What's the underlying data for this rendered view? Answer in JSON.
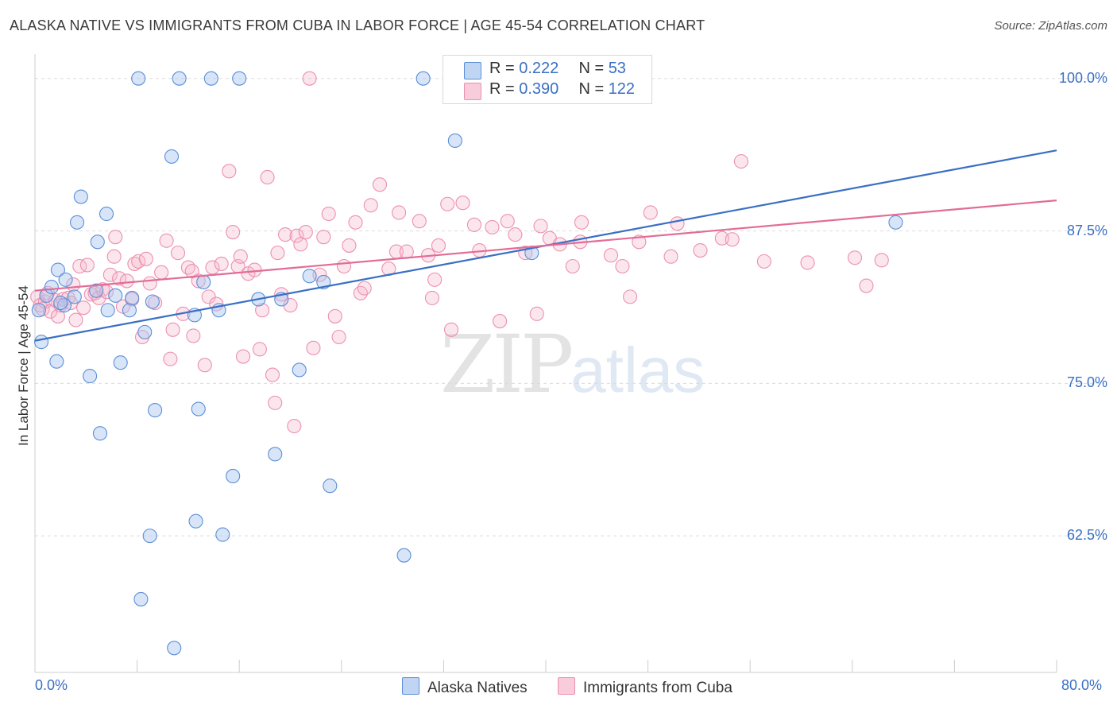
{
  "title": "ALASKA NATIVE VS IMMIGRANTS FROM CUBA IN LABOR FORCE | AGE 45-54 CORRELATION CHART",
  "source": "Source: ZipAtlas.com",
  "watermark": {
    "zip": "ZIP",
    "atlas": "atlas"
  },
  "colors": {
    "blue": "#3a6fc4",
    "blue_fill": "#a9c6ef",
    "blue_stroke": "#5b8fd6",
    "pink": "#e26c98",
    "pink_fill": "#f5b8cb",
    "pink_stroke": "#ec90ae",
    "grid": "#dcdcdc"
  },
  "legend": {
    "rows": [
      {
        "r_label": "R = ",
        "r_value": "0.222",
        "n_label": "N = ",
        "n_value": "53"
      },
      {
        "r_label": "R = ",
        "r_value": "0.390",
        "n_label": "N = ",
        "n_value": "122"
      }
    ]
  },
  "bottom_legend": {
    "series1": "Alaska Natives",
    "series2": "Immigrants from Cuba"
  },
  "chart_data": {
    "type": "scatter",
    "xlabel": "",
    "ylabel": "In Labor Force | Age 45-54",
    "xlim": [
      0,
      80
    ],
    "ylim": [
      51.3,
      102.0
    ],
    "x_tick_labels": {
      "min": "0.0%",
      "max": "80.0%"
    },
    "y_ticks": [
      62.5,
      75.0,
      87.5,
      100.0
    ],
    "y_tick_labels": [
      "62.5%",
      "75.0%",
      "87.5%",
      "100.0%"
    ],
    "grid": "horizontal dashed",
    "legend_position": "top-center",
    "series": [
      {
        "name": "Alaska Natives",
        "color": "#5b8fd6",
        "trend": {
          "x": [
            0,
            80
          ],
          "y": [
            78.5,
            94.1
          ]
        },
        "points": [
          [
            0.3,
            81.0
          ],
          [
            0.5,
            78.4
          ],
          [
            0.9,
            82.2
          ],
          [
            1.3,
            82.9
          ],
          [
            1.7,
            76.8
          ],
          [
            1.8,
            84.3
          ],
          [
            2.3,
            81.4
          ],
          [
            2.4,
            83.5
          ],
          [
            3.1,
            82.1
          ],
          [
            3.3,
            88.2
          ],
          [
            3.6,
            90.3
          ],
          [
            4.3,
            75.6
          ],
          [
            4.8,
            82.6
          ],
          [
            4.9,
            86.6
          ],
          [
            5.1,
            70.9
          ],
          [
            5.6,
            88.9
          ],
          [
            5.7,
            81.0
          ],
          [
            6.3,
            82.2
          ],
          [
            6.7,
            76.7
          ],
          [
            7.4,
            81.0
          ],
          [
            7.6,
            82.0
          ],
          [
            8.1,
            100.0
          ],
          [
            8.3,
            57.3
          ],
          [
            8.6,
            79.2
          ],
          [
            9.0,
            62.5
          ],
          [
            9.4,
            72.8
          ],
          [
            10.7,
            93.6
          ],
          [
            10.9,
            53.3
          ],
          [
            11.3,
            100.0
          ],
          [
            12.5,
            80.6
          ],
          [
            12.6,
            63.7
          ],
          [
            12.8,
            72.9
          ],
          [
            13.2,
            83.3
          ],
          [
            13.8,
            100.0
          ],
          [
            14.4,
            81.0
          ],
          [
            14.7,
            62.6
          ],
          [
            15.5,
            67.4
          ],
          [
            16.0,
            100.0
          ],
          [
            17.5,
            81.9
          ],
          [
            18.8,
            69.2
          ],
          [
            19.3,
            81.9
          ],
          [
            20.7,
            76.1
          ],
          [
            21.5,
            83.8
          ],
          [
            22.6,
            83.3
          ],
          [
            23.1,
            66.6
          ],
          [
            28.9,
            60.9
          ],
          [
            30.4,
            100.0
          ],
          [
            32.9,
            94.9
          ],
          [
            38.9,
            85.7
          ],
          [
            44.4,
            100.0
          ],
          [
            67.4,
            88.2
          ],
          [
            2.0,
            81.6
          ],
          [
            9.2,
            81.7
          ]
        ]
      },
      {
        "name": "Immigrants from Cuba",
        "color": "#ec90ae",
        "trend": {
          "x": [
            0,
            80
          ],
          "y": [
            82.6,
            90.0
          ]
        },
        "points": [
          [
            0.2,
            82.1
          ],
          [
            0.4,
            81.4
          ],
          [
            0.6,
            81.1
          ],
          [
            0.8,
            81.7
          ],
          [
            1.0,
            82.4
          ],
          [
            1.2,
            80.9
          ],
          [
            1.6,
            81.8
          ],
          [
            1.8,
            80.5
          ],
          [
            2.0,
            81.4
          ],
          [
            2.2,
            81.9
          ],
          [
            2.6,
            82.0
          ],
          [
            2.8,
            81.6
          ],
          [
            3.0,
            83.1
          ],
          [
            3.2,
            80.2
          ],
          [
            3.5,
            84.6
          ],
          [
            3.8,
            81.2
          ],
          [
            4.1,
            84.7
          ],
          [
            4.4,
            82.3
          ],
          [
            4.7,
            82.4
          ],
          [
            5.0,
            82.0
          ],
          [
            5.3,
            82.7
          ],
          [
            5.6,
            82.5
          ],
          [
            5.9,
            83.9
          ],
          [
            6.2,
            85.4
          ],
          [
            6.3,
            87.0
          ],
          [
            6.6,
            83.6
          ],
          [
            6.9,
            81.3
          ],
          [
            7.2,
            83.4
          ],
          [
            7.6,
            81.9
          ],
          [
            7.8,
            84.8
          ],
          [
            8.1,
            85.0
          ],
          [
            8.4,
            78.8
          ],
          [
            8.7,
            85.2
          ],
          [
            9.0,
            83.2
          ],
          [
            9.4,
            81.6
          ],
          [
            9.9,
            84.1
          ],
          [
            10.3,
            86.7
          ],
          [
            10.6,
            77.0
          ],
          [
            10.8,
            79.4
          ],
          [
            11.2,
            85.7
          ],
          [
            11.6,
            80.7
          ],
          [
            12.0,
            84.5
          ],
          [
            12.3,
            84.2
          ],
          [
            12.4,
            78.9
          ],
          [
            12.8,
            83.4
          ],
          [
            13.3,
            76.5
          ],
          [
            13.6,
            82.1
          ],
          [
            13.9,
            84.5
          ],
          [
            14.2,
            81.5
          ],
          [
            14.6,
            84.8
          ],
          [
            15.2,
            92.4
          ],
          [
            15.5,
            87.4
          ],
          [
            15.9,
            84.6
          ],
          [
            16.1,
            85.4
          ],
          [
            16.3,
            77.2
          ],
          [
            16.7,
            84.0
          ],
          [
            17.2,
            84.3
          ],
          [
            17.6,
            77.8
          ],
          [
            17.8,
            81.0
          ],
          [
            18.2,
            91.9
          ],
          [
            18.6,
            75.7
          ],
          [
            18.8,
            73.4
          ],
          [
            19.0,
            85.7
          ],
          [
            19.3,
            82.3
          ],
          [
            19.6,
            87.2
          ],
          [
            20.0,
            81.4
          ],
          [
            20.3,
            71.5
          ],
          [
            20.5,
            87.1
          ],
          [
            20.8,
            86.4
          ],
          [
            21.2,
            87.4
          ],
          [
            21.5,
            100.0
          ],
          [
            21.8,
            77.9
          ],
          [
            22.3,
            83.9
          ],
          [
            22.6,
            87.0
          ],
          [
            23.0,
            88.9
          ],
          [
            23.5,
            80.5
          ],
          [
            23.8,
            78.8
          ],
          [
            24.2,
            84.6
          ],
          [
            24.6,
            86.3
          ],
          [
            25.1,
            88.2
          ],
          [
            25.5,
            82.4
          ],
          [
            25.8,
            82.8
          ],
          [
            26.3,
            89.6
          ],
          [
            27.0,
            91.3
          ],
          [
            27.7,
            84.4
          ],
          [
            28.3,
            85.8
          ],
          [
            28.5,
            89.0
          ],
          [
            29.1,
            85.8
          ],
          [
            30.1,
            88.3
          ],
          [
            30.8,
            85.5
          ],
          [
            31.1,
            82.0
          ],
          [
            31.3,
            83.5
          ],
          [
            31.6,
            86.3
          ],
          [
            32.3,
            89.7
          ],
          [
            32.6,
            79.4
          ],
          [
            33.5,
            89.8
          ],
          [
            34.4,
            88.0
          ],
          [
            34.8,
            85.9
          ],
          [
            35.8,
            87.8
          ],
          [
            36.4,
            80.1
          ],
          [
            37.0,
            88.3
          ],
          [
            37.6,
            87.2
          ],
          [
            38.4,
            85.7
          ],
          [
            39.3,
            80.7
          ],
          [
            39.6,
            87.9
          ],
          [
            40.3,
            86.9
          ],
          [
            41.1,
            86.4
          ],
          [
            42.1,
            84.6
          ],
          [
            42.7,
            86.6
          ],
          [
            42.8,
            88.2
          ],
          [
            45.1,
            85.5
          ],
          [
            46.0,
            84.6
          ],
          [
            46.6,
            82.1
          ],
          [
            47.3,
            86.6
          ],
          [
            48.2,
            89.0
          ],
          [
            49.8,
            85.4
          ],
          [
            50.3,
            88.1
          ],
          [
            52.1,
            85.9
          ],
          [
            53.8,
            86.9
          ],
          [
            54.6,
            86.8
          ],
          [
            55.3,
            93.2
          ],
          [
            57.1,
            85.0
          ],
          [
            60.5,
            84.9
          ],
          [
            64.2,
            85.3
          ],
          [
            65.1,
            83.0
          ],
          [
            66.3,
            85.1
          ]
        ]
      }
    ]
  }
}
